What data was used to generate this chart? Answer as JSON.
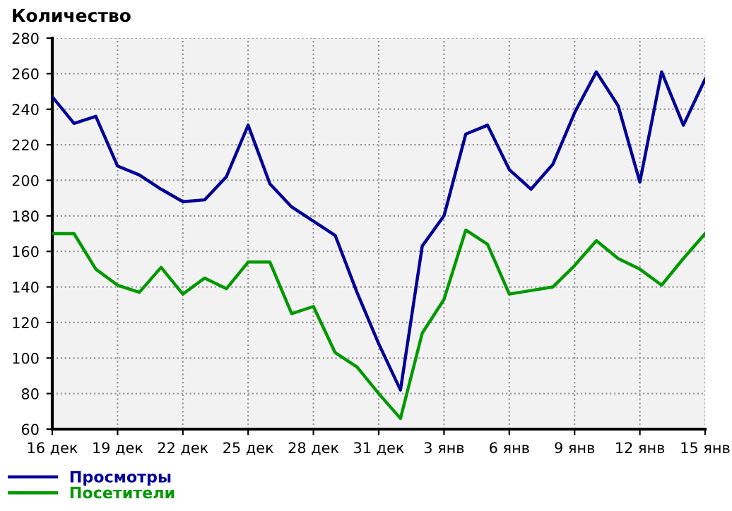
{
  "chart_data": {
    "type": "line",
    "title": "Количество",
    "categories": [
      "16 дек",
      null,
      null,
      "19 дек",
      null,
      null,
      "22 дек",
      null,
      null,
      "25 дек",
      null,
      null,
      "28 дек",
      null,
      null,
      "31 дек",
      null,
      null,
      "3 янв",
      null,
      null,
      "6 янв",
      null,
      null,
      "9 янв",
      null,
      null,
      "12 янв",
      null,
      null,
      "15 янв"
    ],
    "series": [
      {
        "name": "Просмотры",
        "color": "#000099",
        "values": [
          247,
          232,
          236,
          208,
          203,
          195,
          188,
          189,
          202,
          231,
          198,
          185,
          177,
          169,
          137,
          108,
          82,
          163,
          180,
          226,
          231,
          206,
          195,
          209,
          238,
          261,
          242,
          199,
          261,
          231,
          257
        ]
      },
      {
        "name": "Посетители",
        "color": "#009900",
        "values": [
          170,
          170,
          150,
          141,
          137,
          151,
          136,
          145,
          139,
          154,
          154,
          125,
          129,
          103,
          95,
          80,
          66,
          114,
          133,
          172,
          164,
          136,
          138,
          140,
          152,
          166,
          156,
          150,
          141,
          156,
          170
        ]
      }
    ],
    "ylim": [
      60,
      280
    ],
    "yticks": [
      60,
      80,
      100,
      120,
      140,
      160,
      180,
      200,
      220,
      240,
      260,
      280
    ],
    "grid": true,
    "legend": "bottom left",
    "marker": "none",
    "line_style": "solid"
  }
}
